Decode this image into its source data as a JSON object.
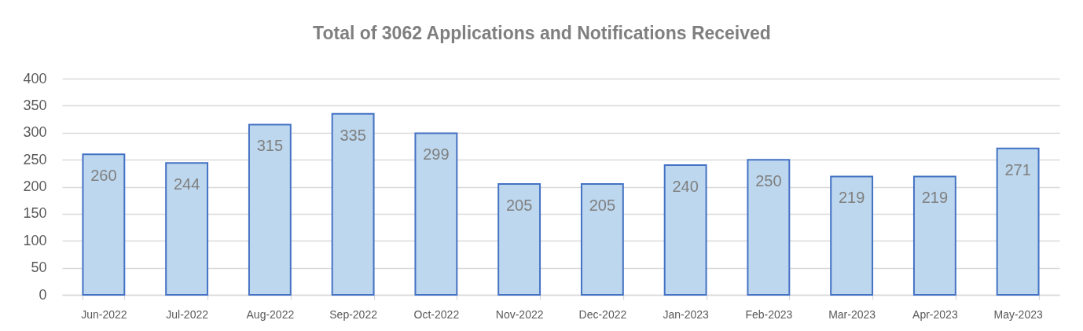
{
  "chart_data": {
    "type": "bar",
    "title": "Total of 3062 Applications and Notifications Received",
    "categories": [
      "Jun-2022",
      "Jul-2022",
      "Aug-2022",
      "Sep-2022",
      "Oct-2022",
      "Nov-2022",
      "Dec-2022",
      "Jan-2023",
      "Feb-2023",
      "Mar-2023",
      "Apr-2023",
      "May-2023"
    ],
    "values": [
      260,
      244,
      315,
      335,
      299,
      205,
      205,
      240,
      250,
      219,
      219,
      271
    ],
    "color": "#bdd7ee",
    "ylim": [
      0,
      400
    ],
    "yticks": [
      0,
      50,
      100,
      150,
      200,
      250,
      300,
      350,
      400
    ],
    "grid": "y",
    "data_labels": true
  }
}
